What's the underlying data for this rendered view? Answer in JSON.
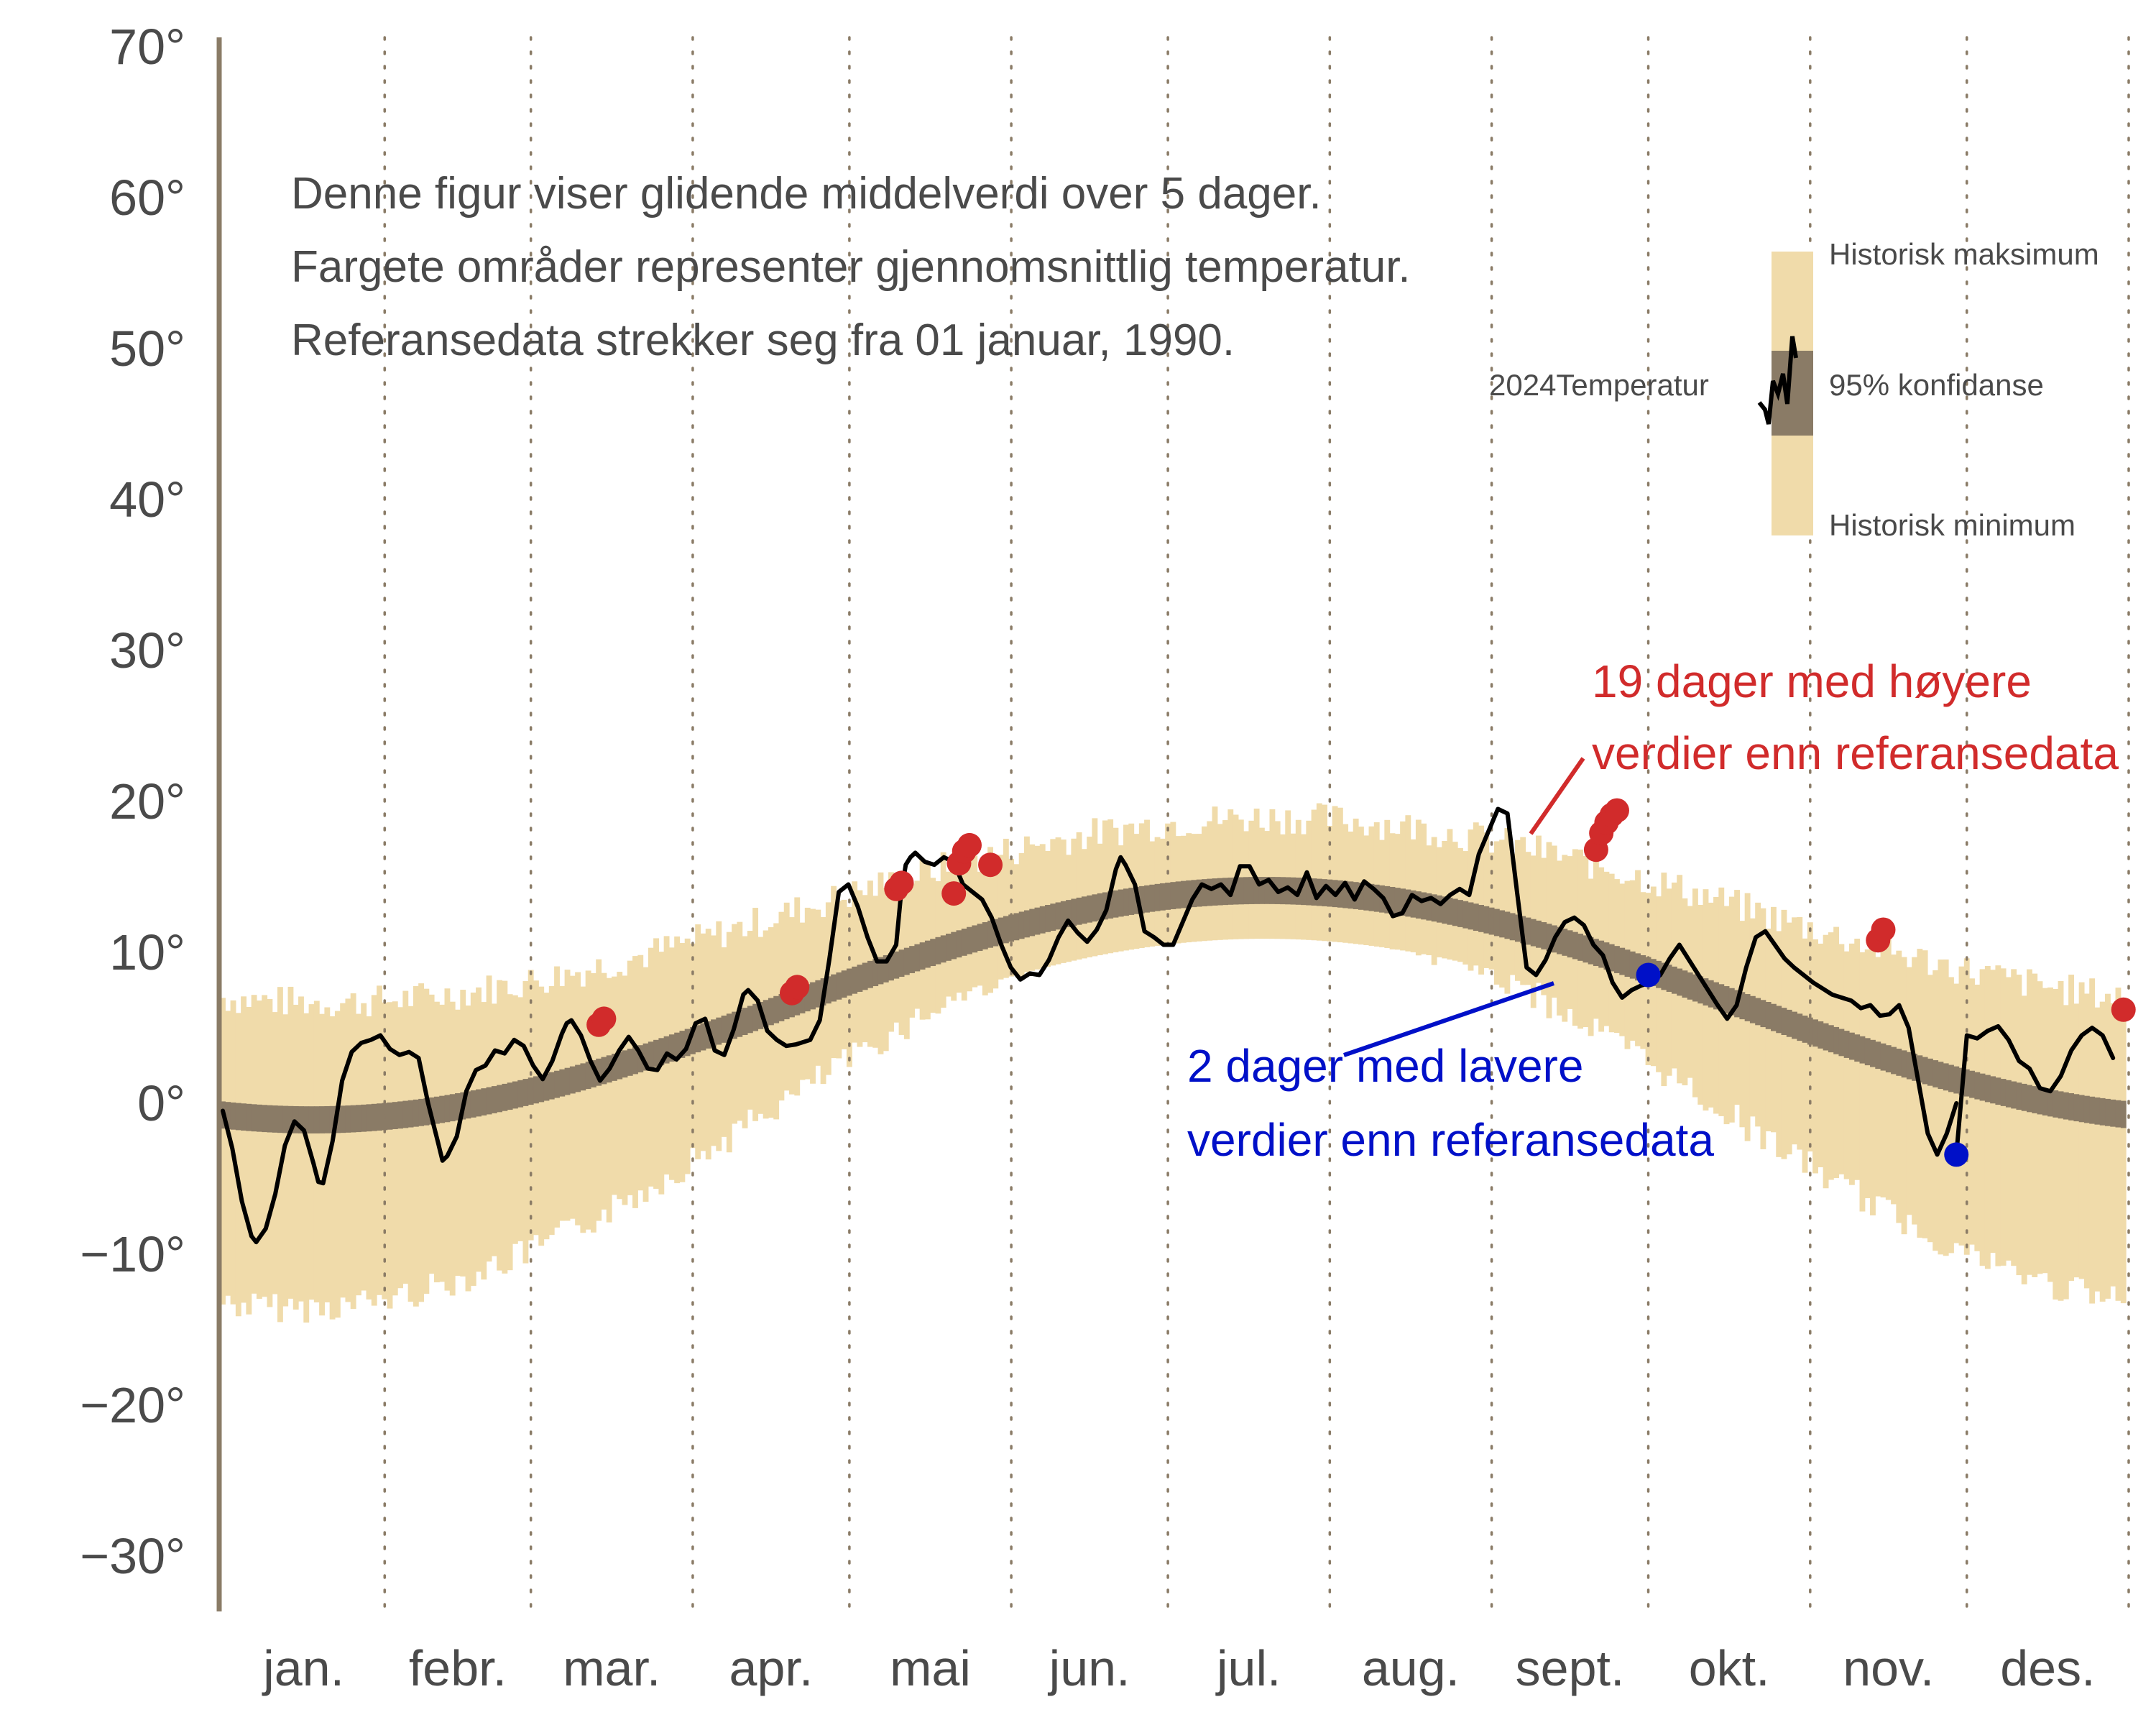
{
  "chart_data": {
    "type": "line",
    "title": "",
    "xlabel": "",
    "ylabel": "",
    "ylim": [
      -35,
      75
    ],
    "yticks": [
      {
        "value": 70,
        "label": "70°"
      },
      {
        "value": 60,
        "label": "60°"
      },
      {
        "value": 50,
        "label": "50°"
      },
      {
        "value": 40,
        "label": "40°"
      },
      {
        "value": 30,
        "label": "30°"
      },
      {
        "value": 20,
        "label": "20°"
      },
      {
        "value": 10,
        "label": "10°"
      },
      {
        "value": 0,
        "label": "0°"
      },
      {
        "value": -10,
        "label": "−10°"
      },
      {
        "value": -20,
        "label": "−20°"
      },
      {
        "value": -30,
        "label": "−30°"
      }
    ],
    "months": [
      "jan.",
      "febr.",
      "mar.",
      "apr.",
      "mai",
      "jun.",
      "jul.",
      "aug.",
      "sept.",
      "okt.",
      "nov.",
      "des."
    ],
    "month_start_days": [
      1,
      32,
      60,
      91,
      121,
      152,
      182,
      213,
      244,
      274,
      305,
      335
    ],
    "notes": [
      "Denne figur viser glidende middelverdi over 5 dager.",
      "Fargete områder representer gjennomsnittlig temperatur.",
      "Referansedata strekker seg fra 01 januar, 1990."
    ],
    "legend": {
      "max_label": "Historisk maksimum",
      "ci_label": "95% konfidanse",
      "min_label": "Historisk minimum",
      "line_label": "2024Temperatur"
    },
    "colors": {
      "historic_band": "#f0dbaa",
      "ci_band": "#8a7b66",
      "line": "#000000",
      "high": "#d12b2b",
      "low": "#0010c8",
      "axis": "#8a7b66",
      "text": "#4a4a4a"
    },
    "series_2024_temperature": [
      {
        "day": 1,
        "value": -0.5
      },
      {
        "day": 3,
        "value": -3
      },
      {
        "day": 5,
        "value": -6.5
      },
      {
        "day": 7,
        "value": -8.8
      },
      {
        "day": 8,
        "value": -9.2
      },
      {
        "day": 10,
        "value": -8.3
      },
      {
        "day": 12,
        "value": -6
      },
      {
        "day": 14,
        "value": -2.8
      },
      {
        "day": 16,
        "value": -1.2
      },
      {
        "day": 18,
        "value": -1.8
      },
      {
        "day": 20,
        "value": -4
      },
      {
        "day": 21,
        "value": -5.2
      },
      {
        "day": 22,
        "value": -5.3
      },
      {
        "day": 24,
        "value": -2.5
      },
      {
        "day": 26,
        "value": 1.5
      },
      {
        "day": 28,
        "value": 3.4
      },
      {
        "day": 30,
        "value": 4
      },
      {
        "day": 32,
        "value": 4.2
      },
      {
        "day": 34,
        "value": 4.5
      },
      {
        "day": 36,
        "value": 3.6
      },
      {
        "day": 38,
        "value": 3.2
      },
      {
        "day": 40,
        "value": 3.4
      },
      {
        "day": 42,
        "value": 3
      },
      {
        "day": 44,
        "value": 0
      },
      {
        "day": 46,
        "value": -2.5
      },
      {
        "day": 47,
        "value": -3.8
      },
      {
        "day": 48,
        "value": -3.5
      },
      {
        "day": 50,
        "value": -2.2
      },
      {
        "day": 52,
        "value": 0.8
      },
      {
        "day": 54,
        "value": 2.2
      },
      {
        "day": 56,
        "value": 2.5
      },
      {
        "day": 58,
        "value": 3.5
      },
      {
        "day": 60,
        "value": 3.3
      },
      {
        "day": 62,
        "value": 4.2
      },
      {
        "day": 64,
        "value": 3.8
      },
      {
        "day": 66,
        "value": 2.5
      },
      {
        "day": 68,
        "value": 1.6
      },
      {
        "day": 70,
        "value": 2.8
      },
      {
        "day": 72,
        "value": 4.6
      },
      {
        "day": 73,
        "value": 5.3
      },
      {
        "day": 74,
        "value": 5.5
      },
      {
        "day": 76,
        "value": 4.5
      },
      {
        "day": 78,
        "value": 2.8
      },
      {
        "day": 80,
        "value": 1.5
      },
      {
        "day": 82,
        "value": 2.3
      },
      {
        "day": 84,
        "value": 3.5
      },
      {
        "day": 86,
        "value": 4.4
      },
      {
        "day": 88,
        "value": 3.5
      },
      {
        "day": 90,
        "value": 2.3
      },
      {
        "day": 92,
        "value": 2.2
      },
      {
        "day": 94,
        "value": 3.3
      },
      {
        "day": 96,
        "value": 2.9
      },
      {
        "day": 98,
        "value": 3.6
      },
      {
        "day": 100,
        "value": 5.3
      },
      {
        "day": 102,
        "value": 5.6
      },
      {
        "day": 104,
        "value": 3.5
      },
      {
        "day": 106,
        "value": 3.2
      },
      {
        "day": 108,
        "value": 4.9
      },
      {
        "day": 110,
        "value": 7.2
      },
      {
        "day": 111,
        "value": 7.5
      },
      {
        "day": 113,
        "value": 6.8
      },
      {
        "day": 115,
        "value": 4.8
      },
      {
        "day": 117,
        "value": 4.2
      },
      {
        "day": 119,
        "value": 3.8
      },
      {
        "day": 121,
        "value": 3.9
      },
      {
        "day": 124,
        "value": 4.2
      },
      {
        "day": 126,
        "value": 5.5
      },
      {
        "day": 128,
        "value": 9.5
      },
      {
        "day": 130,
        "value": 14
      },
      {
        "day": 132,
        "value": 14.5
      },
      {
        "day": 134,
        "value": 13
      },
      {
        "day": 136,
        "value": 11
      },
      {
        "day": 138,
        "value": 9.4
      },
      {
        "day": 140,
        "value": 9.4
      },
      {
        "day": 142,
        "value": 10.5
      },
      {
        "day": 143,
        "value": 13.8
      },
      {
        "day": 144,
        "value": 15.8
      },
      {
        "day": 145,
        "value": 16.3
      },
      {
        "day": 146,
        "value": 16.6
      },
      {
        "day": 148,
        "value": 16
      },
      {
        "day": 150,
        "value": 15.8
      },
      {
        "day": 152,
        "value": 16.3
      },
      {
        "day": 154,
        "value": 16
      },
      {
        "day": 156,
        "value": 14.5
      },
      {
        "day": 158,
        "value": 14
      },
      {
        "day": 160,
        "value": 13.5
      },
      {
        "day": 162,
        "value": 12.3
      },
      {
        "day": 164,
        "value": 10.5
      },
      {
        "day": 166,
        "value": 9
      },
      {
        "day": 168,
        "value": 8.2
      },
      {
        "day": 170,
        "value": 8.6
      },
      {
        "day": 172,
        "value": 8.5
      },
      {
        "day": 174,
        "value": 9.5
      },
      {
        "day": 176,
        "value": 11
      },
      {
        "day": 178,
        "value": 12.1
      },
      {
        "day": 180,
        "value": 11.3
      },
      {
        "day": 182,
        "value": 10.7
      },
      {
        "day": 184,
        "value": 11.5
      },
      {
        "day": 186,
        "value": 12.8
      },
      {
        "day": 188,
        "value": 15.5
      },
      {
        "day": 189,
        "value": 16.3
      },
      {
        "day": 190,
        "value": 15.8
      },
      {
        "day": 192,
        "value": 14.5
      },
      {
        "day": 194,
        "value": 11.4
      },
      {
        "day": 196,
        "value": 11
      },
      {
        "day": 198,
        "value": 10.5
      },
      {
        "day": 200,
        "value": 10.5
      },
      {
        "day": 202,
        "value": 12
      },
      {
        "day": 204,
        "value": 13.5
      },
      {
        "day": 206,
        "value": 14.5
      },
      {
        "day": 208,
        "value": 14.2
      },
      {
        "day": 210,
        "value": 14.5
      },
      {
        "day": 212,
        "value": 13.8
      },
      {
        "day": 214,
        "value": 15.7
      },
      {
        "day": 216,
        "value": 15.7
      },
      {
        "day": 218,
        "value": 14.5
      },
      {
        "day": 220,
        "value": 14.8
      },
      {
        "day": 222,
        "value": 14
      },
      {
        "day": 224,
        "value": 14.3
      },
      {
        "day": 226,
        "value": 13.8
      },
      {
        "day": 228,
        "value": 15.3
      },
      {
        "day": 230,
        "value": 13.6
      },
      {
        "day": 232,
        "value": 14.4
      },
      {
        "day": 234,
        "value": 13.8
      },
      {
        "day": 236,
        "value": 14.6
      },
      {
        "day": 238,
        "value": 13.5
      },
      {
        "day": 240,
        "value": 14.7
      },
      {
        "day": 242,
        "value": 14.2
      },
      {
        "day": 244,
        "value": 13.6
      },
      {
        "day": 246,
        "value": 12.4
      },
      {
        "day": 248,
        "value": 12.6
      },
      {
        "day": 250,
        "value": 13.8
      },
      {
        "day": 252,
        "value": 13.4
      },
      {
        "day": 254,
        "value": 13.6
      },
      {
        "day": 256,
        "value": 13.2
      },
      {
        "day": 258,
        "value": 13.8
      },
      {
        "day": 260,
        "value": 14.2
      },
      {
        "day": 262,
        "value": 13.8
      },
      {
        "day": 264,
        "value": 16.5
      },
      {
        "day": 266,
        "value": 18
      },
      {
        "day": 268,
        "value": 19.5
      },
      {
        "day": 270,
        "value": 19.2
      },
      {
        "day": 272,
        "value": 14
      },
      {
        "day": 274,
        "value": 9
      },
      {
        "day": 276,
        "value": 8.5
      },
      {
        "day": 278,
        "value": 9.5
      },
      {
        "day": 280,
        "value": 11
      },
      {
        "day": 282,
        "value": 12
      },
      {
        "day": 284,
        "value": 12.3
      },
      {
        "day": 286,
        "value": 11.8
      },
      {
        "day": 288,
        "value": 10.5
      },
      {
        "day": 290,
        "value": 9.8
      },
      {
        "day": 292,
        "value": 8
      },
      {
        "day": 294,
        "value": 7
      },
      {
        "day": 296,
        "value": 7.5
      },
      {
        "day": 298,
        "value": 7.8
      },
      {
        "day": 300,
        "value": 8
      },
      {
        "day": 302,
        "value": 8.5
      },
      {
        "day": 304,
        "value": 9.6
      },
      {
        "day": 306,
        "value": 10.5
      },
      {
        "day": 308,
        "value": 9.5
      },
      {
        "day": 310,
        "value": 8.5
      },
      {
        "day": 312,
        "value": 7.5
      },
      {
        "day": 314,
        "value": 6.5
      },
      {
        "day": 316,
        "value": 5.6
      },
      {
        "day": 318,
        "value": 6.5
      },
      {
        "day": 320,
        "value": 9
      },
      {
        "day": 322,
        "value": 11
      },
      {
        "day": 324,
        "value": 11.4
      },
      {
        "day": 326,
        "value": 10.5
      },
      {
        "day": 328,
        "value": 9.6
      },
      {
        "day": 330,
        "value": 9
      },
      {
        "day": 332,
        "value": 8.5
      },
      {
        "day": 334,
        "value": 8
      },
      {
        "day": 336,
        "value": 7.6
      },
      {
        "day": 338,
        "value": 7.2
      },
      {
        "day": 340,
        "value": 7
      },
      {
        "day": 342,
        "value": 6.8
      },
      {
        "day": 344,
        "value": 6.3
      },
      {
        "day": 346,
        "value": 6.5
      },
      {
        "day": 348,
        "value": 5.8
      },
      {
        "day": 350,
        "value": 5.9
      },
      {
        "day": 352,
        "value": 6.5
      },
      {
        "day": 354,
        "value": 5
      },
      {
        "day": 356,
        "value": 1.5
      },
      {
        "day": 358,
        "value": -2
      },
      {
        "day": 360,
        "value": -3.4
      },
      {
        "day": 362,
        "value": -2
      },
      {
        "day": 364,
        "value": 0
      }
    ],
    "series_2024_temperature_dec": [
      {
        "day": 335,
        "value": 4.5
      },
      {
        "day": 337,
        "value": 4.3
      },
      {
        "day": 339,
        "value": 4.8
      },
      {
        "day": 341,
        "value": 5.1
      },
      {
        "day": 343,
        "value": 4.2
      },
      {
        "day": 345,
        "value": 2.8
      },
      {
        "day": 347,
        "value": 2.3
      },
      {
        "day": 349,
        "value": 1
      },
      {
        "day": 351,
        "value": 0.8
      },
      {
        "day": 353,
        "value": 1.8
      },
      {
        "day": 355,
        "value": 3.5
      },
      {
        "day": 357,
        "value": 4.5
      },
      {
        "day": 359,
        "value": 5
      },
      {
        "day": 361,
        "value": 4.5
      },
      {
        "day": 363,
        "value": 3
      }
    ],
    "high_points_count_label": "19 dager med høyere",
    "high_points_count_label2": "verdier enn referansedata",
    "low_points_count_label": "2 dager med lavere",
    "low_points_count_label2": "verdier enn referansedata",
    "high_points": [
      {
        "day": 73,
        "value": 5.2
      },
      {
        "day": 74,
        "value": 5.6
      },
      {
        "day": 110,
        "value": 7.3
      },
      {
        "day": 111,
        "value": 7.7
      },
      {
        "day": 130,
        "value": 14.2
      },
      {
        "day": 131,
        "value": 14.6
      },
      {
        "day": 141,
        "value": 13.9
      },
      {
        "day": 142,
        "value": 15.9
      },
      {
        "day": 143,
        "value": 16.7
      },
      {
        "day": 144,
        "value": 17.1
      },
      {
        "day": 148,
        "value": 15.8
      },
      {
        "day": 264,
        "value": 16.8
      },
      {
        "day": 265,
        "value": 17.9
      },
      {
        "day": 266,
        "value": 18.6
      },
      {
        "day": 267,
        "value": 19.1
      },
      {
        "day": 268,
        "value": 19.4
      },
      {
        "day": 318,
        "value": 10.8
      },
      {
        "day": 319,
        "value": 11.5
      },
      {
        "day": 365,
        "value": 6.2
      }
    ],
    "low_points": [
      {
        "day": 274,
        "value": 8.5
      },
      {
        "day": 333,
        "value": -3.4
      }
    ]
  }
}
